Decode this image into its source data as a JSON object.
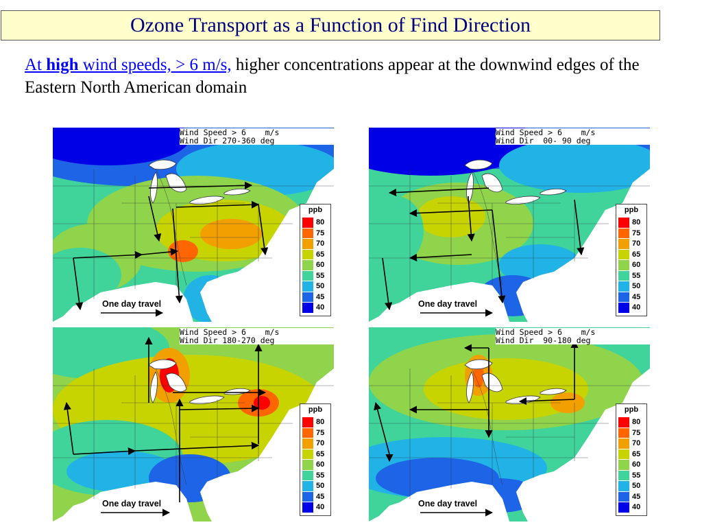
{
  "slide": {
    "title": "Ozone Transport as a Function of Find Direction",
    "subtitle": {
      "prefix": "At ",
      "bold_word": "high",
      "linked_rest": " wind speeds, > 6 m/s,",
      "rest": " higher concentrations appear at the downwind edges of the Eastern North American domain"
    }
  },
  "legend": {
    "unit": "ppb",
    "levels": [
      "80",
      "75",
      "70",
      "65",
      "60",
      "55",
      "50",
      "45",
      "40"
    ],
    "colors": [
      "#ff0000",
      "#ff6600",
      "#f2a000",
      "#c8d400",
      "#8fd44a",
      "#40d49a",
      "#21b3e6",
      "#1e64e6",
      "#0000e6"
    ]
  },
  "travel_label": "One day travel",
  "panels": [
    {
      "id": "top-left",
      "speed": "Wind Speed > 6    m/s",
      "dir": "Wind Dir 270-360 deg"
    },
    {
      "id": "top-right",
      "speed": "Wind Speed > 6    m/s",
      "dir": "Wind Dir  00- 90 deg"
    },
    {
      "id": "bottom-left",
      "speed": "Wind Speed > 6    m/s",
      "dir": "Wind Dir 180-270 deg"
    },
    {
      "id": "bottom-right",
      "speed": "Wind Speed > 6    m/s",
      "dir": "Wind Dir  90-180 deg"
    }
  ],
  "colors": {
    "title_text": "#000080",
    "title_bg": "#ffffcc",
    "link_blue": "#0000ff"
  }
}
